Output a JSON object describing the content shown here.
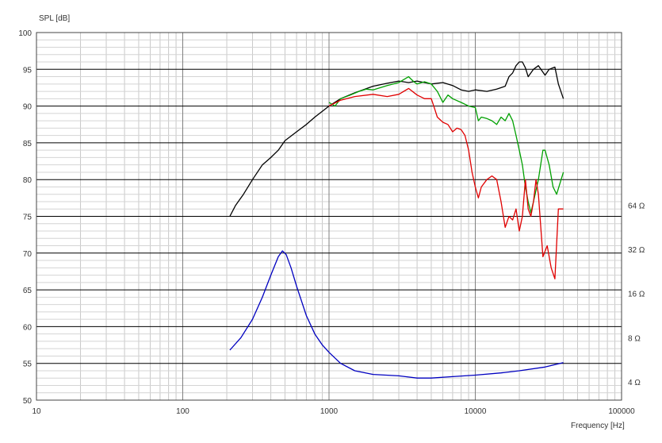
{
  "chart_data": {
    "type": "line",
    "title": "",
    "ylabel": "SPL [dB]",
    "xlabel": "Frequency [Hz]",
    "xscale": "log",
    "xlim": [
      10,
      100000
    ],
    "ylim": [
      50,
      100
    ],
    "y_ticks": [
      "100",
      "95",
      "90",
      "85",
      "80",
      "75",
      "70",
      "65",
      "60",
      "55",
      "50"
    ],
    "x_ticks": [
      "10",
      "100",
      "1000",
      "10000",
      "100000"
    ],
    "right_ticks": [
      {
        "label": "64 Ω",
        "y": 76.5
      },
      {
        "label": "32 Ω",
        "y": 70.5
      },
      {
        "label": "16 Ω",
        "y": 64.5
      },
      {
        "label": "8 Ω",
        "y": 58.5
      },
      {
        "label": "4 Ω",
        "y": 52.5
      }
    ],
    "grid": true,
    "series": [
      {
        "color": "#000000",
        "points": [
          [
            210,
            75
          ],
          [
            230,
            76.5
          ],
          [
            260,
            78
          ],
          [
            300,
            80
          ],
          [
            350,
            82
          ],
          [
            400,
            83
          ],
          [
            450,
            84
          ],
          [
            500,
            85.3
          ],
          [
            600,
            86.5
          ],
          [
            700,
            87.5
          ],
          [
            800,
            88.5
          ],
          [
            900,
            89.3
          ],
          [
            1000,
            90
          ],
          [
            1200,
            91
          ],
          [
            1500,
            91.8
          ],
          [
            2000,
            92.7
          ],
          [
            2500,
            93.1
          ],
          [
            3000,
            93.4
          ],
          [
            3500,
            93.2
          ],
          [
            4000,
            93.4
          ],
          [
            5000,
            93
          ],
          [
            6000,
            93.2
          ],
          [
            7000,
            92.8
          ],
          [
            8000,
            92.2
          ],
          [
            9000,
            92
          ],
          [
            10000,
            92.2
          ],
          [
            12000,
            92
          ],
          [
            14000,
            92.3
          ],
          [
            16000,
            92.7
          ],
          [
            17000,
            94
          ],
          [
            18000,
            94.5
          ],
          [
            19000,
            95.5
          ],
          [
            20000,
            96
          ],
          [
            21000,
            96
          ],
          [
            22000,
            95.2
          ],
          [
            23000,
            94
          ],
          [
            25000,
            95
          ],
          [
            27000,
            95.5
          ],
          [
            30000,
            94.2
          ],
          [
            32000,
            95
          ],
          [
            35000,
            95.3
          ],
          [
            37000,
            93
          ],
          [
            40000,
            91
          ]
        ]
      },
      {
        "color": "#00a000",
        "points": [
          [
            1000,
            90.5
          ],
          [
            1100,
            90
          ],
          [
            1200,
            91
          ],
          [
            1400,
            91.5
          ],
          [
            1600,
            92
          ],
          [
            1800,
            92.3
          ],
          [
            2000,
            92.2
          ],
          [
            2500,
            92.8
          ],
          [
            3000,
            93.2
          ],
          [
            3500,
            94
          ],
          [
            3800,
            93.3
          ],
          [
            4000,
            93
          ],
          [
            4500,
            93.3
          ],
          [
            5000,
            93
          ],
          [
            5500,
            92
          ],
          [
            6000,
            90.5
          ],
          [
            6500,
            91.5
          ],
          [
            7000,
            91
          ],
          [
            8000,
            90.5
          ],
          [
            9000,
            90
          ],
          [
            10000,
            89.8
          ],
          [
            10500,
            88
          ],
          [
            11000,
            88.5
          ],
          [
            12000,
            88.3
          ],
          [
            13000,
            88
          ],
          [
            14000,
            87.5
          ],
          [
            15000,
            88.5
          ],
          [
            16000,
            88
          ],
          [
            17000,
            89
          ],
          [
            18000,
            88
          ],
          [
            19000,
            86
          ],
          [
            20000,
            84
          ],
          [
            21000,
            82
          ],
          [
            22000,
            79
          ],
          [
            23000,
            77
          ],
          [
            24000,
            75.5
          ],
          [
            25000,
            77
          ],
          [
            27000,
            80
          ],
          [
            29000,
            84
          ],
          [
            30000,
            84
          ],
          [
            32000,
            82
          ],
          [
            34000,
            79
          ],
          [
            36000,
            78
          ],
          [
            40000,
            81
          ]
        ]
      },
      {
        "color": "#e00000",
        "points": [
          [
            1000,
            90
          ],
          [
            1200,
            90.8
          ],
          [
            1500,
            91.3
          ],
          [
            2000,
            91.6
          ],
          [
            2500,
            91.3
          ],
          [
            3000,
            91.6
          ],
          [
            3500,
            92.4
          ],
          [
            4000,
            91.5
          ],
          [
            4500,
            91
          ],
          [
            5000,
            91
          ],
          [
            5200,
            90
          ],
          [
            5500,
            88.5
          ],
          [
            6000,
            87.8
          ],
          [
            6500,
            87.5
          ],
          [
            7000,
            86.5
          ],
          [
            7500,
            87
          ],
          [
            8000,
            86.8
          ],
          [
            8500,
            86
          ],
          [
            9000,
            84
          ],
          [
            9500,
            81
          ],
          [
            10000,
            79
          ],
          [
            10500,
            77.5
          ],
          [
            11000,
            79
          ],
          [
            12000,
            80
          ],
          [
            13000,
            80.5
          ],
          [
            14000,
            80
          ],
          [
            15000,
            77
          ],
          [
            16000,
            73.5
          ],
          [
            17000,
            75
          ],
          [
            18000,
            74.5
          ],
          [
            19000,
            76
          ],
          [
            20000,
            73
          ],
          [
            21000,
            75
          ],
          [
            22000,
            80
          ],
          [
            23000,
            76
          ],
          [
            24000,
            75
          ],
          [
            25000,
            77
          ],
          [
            26000,
            80
          ],
          [
            27000,
            78
          ],
          [
            29000,
            69.5
          ],
          [
            31000,
            71
          ],
          [
            33000,
            68
          ],
          [
            35000,
            66.5
          ],
          [
            37000,
            76
          ],
          [
            40000,
            76
          ]
        ]
      },
      {
        "color": "#0000c0",
        "points": [
          [
            210,
            56.8
          ],
          [
            250,
            58.5
          ],
          [
            300,
            61
          ],
          [
            350,
            64
          ],
          [
            400,
            67
          ],
          [
            450,
            69.5
          ],
          [
            480,
            70.3
          ],
          [
            510,
            69.8
          ],
          [
            550,
            68
          ],
          [
            600,
            65.5
          ],
          [
            700,
            61.5
          ],
          [
            800,
            59
          ],
          [
            900,
            57.5
          ],
          [
            1000,
            56.5
          ],
          [
            1200,
            55
          ],
          [
            1500,
            54
          ],
          [
            2000,
            53.5
          ],
          [
            3000,
            53.3
          ],
          [
            4000,
            53
          ],
          [
            5000,
            53
          ],
          [
            7000,
            53.2
          ],
          [
            10000,
            53.4
          ],
          [
            15000,
            53.7
          ],
          [
            20000,
            54
          ],
          [
            30000,
            54.5
          ],
          [
            40000,
            55.1
          ]
        ]
      }
    ]
  }
}
